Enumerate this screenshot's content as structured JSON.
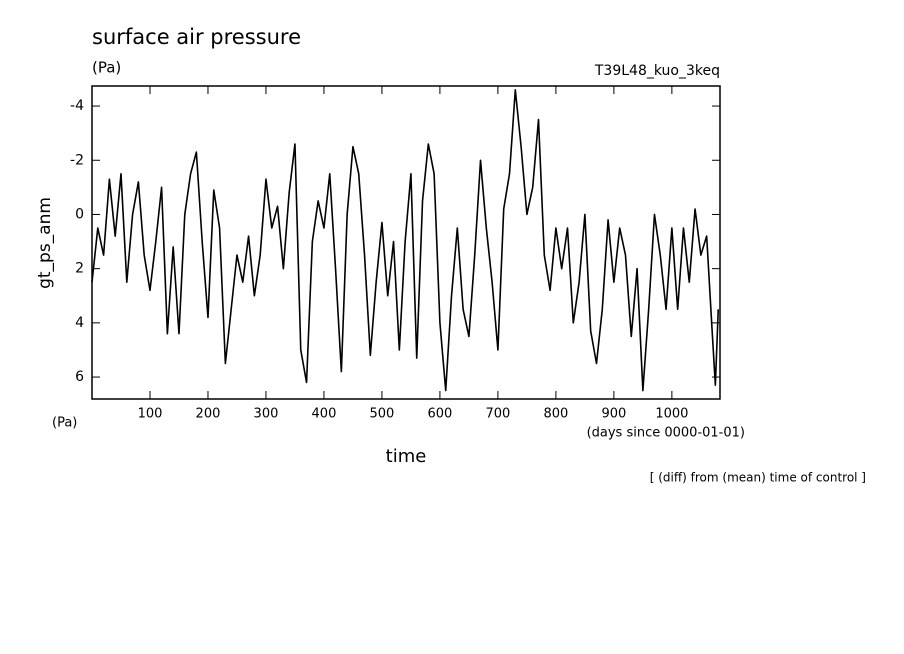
{
  "chart_data": {
    "type": "line",
    "title": "surface air pressure",
    "y_unit": "(Pa)",
    "run_label": "T39L48_kuo_3keq",
    "y_label": "gt_ps_anm",
    "x_unit_left": "(Pa)",
    "x_unit": "(days since 0000-01-01)",
    "x_label": "time",
    "note": "[ (diff) from (mean) time of control ]",
    "xlim": [
      0,
      1083
    ],
    "xticks": [
      100,
      200,
      300,
      400,
      500,
      600,
      700,
      800,
      900,
      1000
    ],
    "ylim": [
      6.81,
      -4.74
    ],
    "yticks": [
      -4,
      -2,
      0,
      2,
      4,
      6
    ],
    "x": [
      0,
      10,
      20,
      30,
      40,
      50,
      60,
      70,
      80,
      90,
      100,
      110,
      120,
      130,
      140,
      150,
      160,
      170,
      180,
      190,
      200,
      210,
      220,
      230,
      240,
      250,
      260,
      270,
      280,
      290,
      300,
      310,
      320,
      330,
      340,
      350,
      360,
      370,
      380,
      390,
      400,
      410,
      420,
      430,
      440,
      450,
      460,
      470,
      480,
      490,
      500,
      510,
      520,
      530,
      540,
      550,
      560,
      570,
      580,
      590,
      600,
      610,
      620,
      630,
      640,
      650,
      660,
      670,
      680,
      690,
      700,
      710,
      720,
      730,
      740,
      750,
      760,
      770,
      780,
      790,
      800,
      810,
      820,
      830,
      840,
      850,
      860,
      870,
      880,
      890,
      900,
      910,
      920,
      930,
      940,
      950,
      960,
      970,
      980,
      990,
      1000,
      1010,
      1020,
      1030,
      1040,
      1050,
      1060,
      1070,
      1075,
      1080
    ],
    "series": [
      {
        "name": "gt_ps_anm",
        "color": "#000000",
        "values": [
          2.5,
          0.5,
          1.5,
          -1.3,
          0.8,
          -1.5,
          2.5,
          0,
          -1.2,
          1.5,
          2.8,
          1.0,
          -1.0,
          4.4,
          1.2,
          4.4,
          0,
          -1.5,
          -2.3,
          1.0,
          3.8,
          -0.9,
          0.5,
          5.5,
          3.5,
          1.5,
          2.5,
          0.8,
          3.0,
          1.5,
          -1.3,
          0.5,
          -0.3,
          2.0,
          -0.8,
          -2.6,
          5.0,
          6.2,
          1.0,
          -0.5,
          0.5,
          -1.5,
          2.0,
          5.8,
          0,
          -2.5,
          -1.5,
          1.5,
          5.2,
          2.5,
          0.3,
          3.0,
          1.0,
          5.0,
          1.0,
          -1.5,
          5.3,
          -0.5,
          -2.6,
          -1.5,
          4.0,
          6.5,
          3.0,
          0.5,
          3.5,
          4.5,
          1.5,
          -2.0,
          0.5,
          2.5,
          5.0,
          -0.2,
          -1.5,
          -4.6,
          -2.5,
          0,
          -1.0,
          -3.5,
          1.5,
          2.8,
          0.5,
          2.0,
          0.5,
          4.0,
          2.5,
          0.0,
          4.3,
          5.5,
          3.5,
          0.2,
          2.5,
          0.5,
          1.5,
          4.5,
          2.0,
          6.5,
          3.5,
          0.0,
          1.5,
          3.5,
          0.5,
          3.5,
          0.5,
          2.5,
          -0.2,
          1.5,
          0.8,
          4.5,
          6.3,
          3.5
        ]
      }
    ]
  }
}
